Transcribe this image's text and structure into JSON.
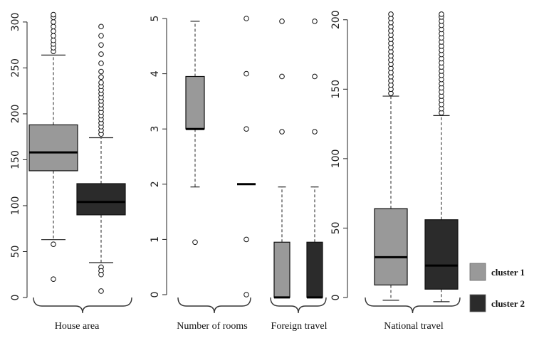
{
  "chart_data": {
    "type": "boxplot",
    "legend": {
      "position": "right",
      "entries": [
        {
          "label": "cluster 1",
          "color": "#999999"
        },
        {
          "label": "cluster 2",
          "color": "#2b2b2b"
        }
      ]
    },
    "panels": [
      {
        "label": "House area",
        "ylim": [
          0,
          310
        ],
        "yticks": [
          0,
          50,
          100,
          150,
          200,
          250,
          300
        ],
        "groups": [
          {
            "name": "cluster 1",
            "q1": 138,
            "median": 158,
            "q3": 188,
            "whisker_low": 63,
            "whisker_high": 264,
            "outliers": [
              58,
              20,
              268,
              272,
              276,
              280,
              285,
              290,
              295,
              300,
              305,
              308
            ]
          },
          {
            "name": "cluster 2",
            "q1": 90,
            "median": 104,
            "q3": 124,
            "whisker_low": 38,
            "whisker_high": 174,
            "outliers": [
              33,
              29,
              25,
              7,
              178,
              182,
              186,
              190,
              194,
              198,
              202,
              206,
              210,
              214,
              218,
              222,
              226,
              230,
              234,
              240,
              246,
              255,
              265,
              275,
              285,
              295
            ]
          }
        ]
      },
      {
        "label": "Number of rooms",
        "ylim": [
          0,
          5
        ],
        "yticks": [
          0,
          1,
          2,
          3,
          4,
          5
        ],
        "groups": [
          {
            "name": "cluster 1",
            "q1": 3,
            "median": 3,
            "q3": 3.95,
            "whisker_low": 1.95,
            "whisker_high": 4.95,
            "outliers": [
              0.95
            ]
          },
          {
            "name": "cluster 2",
            "q1": 2,
            "median": 2,
            "q3": 2,
            "whisker_low": 2,
            "whisker_high": 2,
            "outliers": [
              0,
              1,
              3,
              4,
              5
            ]
          }
        ]
      },
      {
        "label": "Foreign travel",
        "ylim": [
          0,
          5
        ],
        "yticks": [],
        "groups": [
          {
            "name": "cluster 1",
            "q1": -0.05,
            "median": -0.05,
            "q3": 0.95,
            "whisker_low": -0.05,
            "whisker_high": 1.95,
            "outliers": [
              2.95,
              3.95,
              4.95
            ]
          },
          {
            "name": "cluster 2",
            "q1": -0.05,
            "median": -0.05,
            "q3": 0.95,
            "whisker_low": -0.05,
            "whisker_high": 1.95,
            "outliers": [
              2.95,
              3.95,
              4.95
            ]
          }
        ]
      },
      {
        "label": "National travel",
        "ylim": [
          0,
          205
        ],
        "yticks": [
          0,
          50,
          100,
          150,
          200
        ],
        "groups": [
          {
            "name": "cluster 1",
            "q1": 9,
            "median": 29,
            "q3": 64,
            "whisker_low": -2,
            "whisker_high": 145,
            "outliers": [
              147,
              150,
              153,
              156,
              159,
              162,
              165,
              168,
              171,
              174,
              177,
              180,
              183,
              186,
              189,
              192,
              195,
              198,
              201,
              204
            ]
          },
          {
            "name": "cluster 2",
            "q1": 6,
            "median": 23,
            "q3": 56,
            "whisker_low": -3,
            "whisker_high": 131,
            "outliers": [
              133,
              136,
              139,
              142,
              145,
              148,
              151,
              154,
              157,
              160,
              163,
              166,
              169,
              172,
              175,
              178,
              181,
              184,
              187,
              190,
              193,
              196,
              199,
              202,
              204
            ]
          }
        ]
      }
    ]
  }
}
